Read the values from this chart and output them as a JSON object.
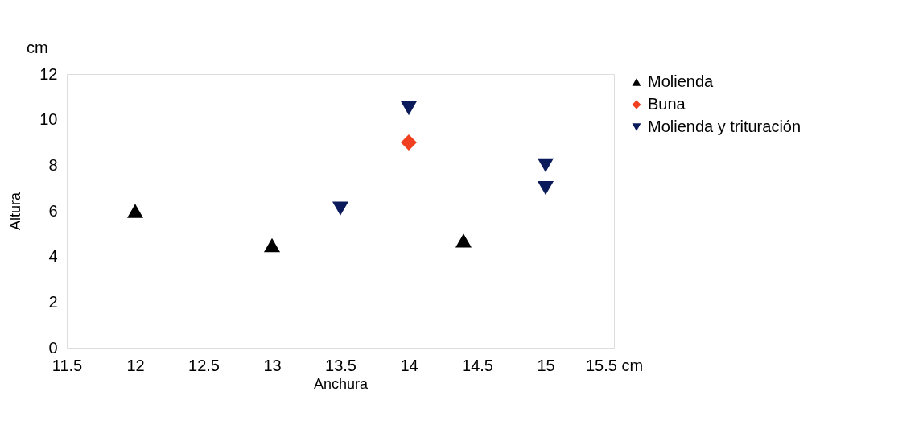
{
  "chart_data": {
    "type": "scatter",
    "xlabel": "Anchura",
    "ylabel": "Altura",
    "annotations": [
      "cm"
    ],
    "xlim": [
      11.5,
      15.5
    ],
    "xticks": [
      11.5,
      12,
      12.5,
      13,
      13.5,
      14,
      14.5,
      15,
      {
        "value": 15.5,
        "label": "15.5 cm"
      }
    ],
    "ylim": [
      0,
      12
    ],
    "yticks": [
      0,
      2,
      4,
      6,
      8,
      10,
      12
    ],
    "grid": false,
    "legend": "right",
    "series": [
      {
        "name": "Molienda",
        "color": "#000000",
        "marker": "triangle",
        "x": [
          12,
          13,
          14.4
        ],
        "values": [
          6,
          4.5,
          4.7
        ]
      },
      {
        "name": "Buna",
        "color": "#f04020",
        "marker": "diamond",
        "x": [
          14
        ],
        "values": [
          9
        ]
      },
      {
        "name": "Molienda y trituración",
        "color": "#0a1a5a",
        "marker": "triangle_down",
        "x": [
          13.5,
          14,
          15,
          15
        ],
        "values": [
          6.1,
          10.5,
          8,
          7
        ]
      }
    ]
  }
}
